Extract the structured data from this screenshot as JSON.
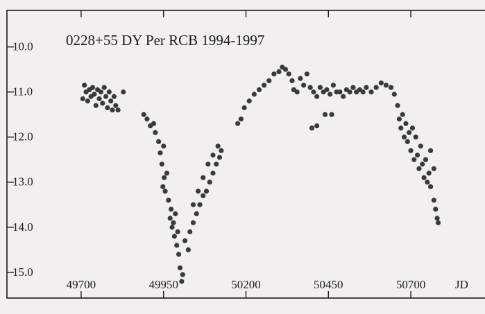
{
  "chart_data": {
    "type": "scatter",
    "title": "0228+55  DY Per  RCB  1994-1997",
    "xlabel": "JD",
    "color": "#3a3a3a",
    "y_inverted": true,
    "xlim": [
      49475,
      50925
    ],
    "ylim": [
      9.19,
      15.57
    ],
    "xticks": [
      49700,
      49950,
      50200,
      50450,
      50700
    ],
    "yticks": [
      {
        "value": 10,
        "label": "10.0"
      },
      {
        "value": 11,
        "label": "11.0"
      },
      {
        "value": 12,
        "label": "12.0"
      },
      {
        "value": 13,
        "label": "13.0"
      },
      {
        "value": 14,
        "label": "14.0"
      },
      {
        "value": 15,
        "label": "15.0"
      }
    ],
    "x": [
      49705,
      49710,
      49715,
      49720,
      49725,
      49730,
      49735,
      49740,
      49745,
      49750,
      49755,
      49760,
      49765,
      49770,
      49775,
      49780,
      49785,
      49790,
      49795,
      49800,
      49805,
      49812,
      49828,
      49890,
      49900,
      49910,
      49920,
      49925,
      49935,
      49940,
      49945,
      49950,
      49948,
      49952,
      49955,
      49960,
      49965,
      49970,
      49973,
      49976,
      49980,
      49983,
      49986,
      49990,
      49993,
      49996,
      50000,
      50005,
      50008,
      50015,
      50025,
      50030,
      50040,
      50050,
      50060,
      50070,
      50080,
      50090,
      50100,
      50110,
      50120,
      50125,
      50040,
      50055,
      50070,
      50085,
      50100,
      50115,
      50175,
      50185,
      50195,
      50210,
      50225,
      50240,
      50255,
      50270,
      50285,
      50300,
      50310,
      50320,
      50330,
      50340,
      50345,
      50355,
      50365,
      50375,
      50385,
      50395,
      50405,
      50415,
      50425,
      50435,
      50445,
      50455,
      50465,
      50475,
      50485,
      50495,
      50505,
      50515,
      50525,
      50535,
      50545,
      50555,
      50565,
      50580,
      50595,
      50610,
      50625,
      50640,
      50650,
      50400,
      50415,
      50440,
      50460,
      50660,
      50665,
      50670,
      50675,
      50680,
      50685,
      50690,
      50695,
      50700,
      50705,
      50710,
      50715,
      50720,
      50725,
      50730,
      50735,
      50740,
      50745,
      50750,
      50755,
      50760,
      50770,
      50775,
      50780,
      50783,
      50760,
      50770
    ],
    "values": [
      11.15,
      10.85,
      11.0,
      11.2,
      10.95,
      11.1,
      10.9,
      11.05,
      11.3,
      10.95,
      11.15,
      11.0,
      11.25,
      10.9,
      11.1,
      11.35,
      11.0,
      11.2,
      11.4,
      11.1,
      11.3,
      11.4,
      11.0,
      11.5,
      11.6,
      11.75,
      11.7,
      11.9,
      12.1,
      12.35,
      12.6,
      12.2,
      13.1,
      12.9,
      13.2,
      12.8,
      13.4,
      13.8,
      13.6,
      14.0,
      13.9,
      14.2,
      13.7,
      14.4,
      14.1,
      14.6,
      14.9,
      15.2,
      15.05,
      14.3,
      14.5,
      14.1,
      13.9,
      13.7,
      13.5,
      13.3,
      13.2,
      13.0,
      12.8,
      12.6,
      12.45,
      12.3,
      13.5,
      13.2,
      12.9,
      12.6,
      12.4,
      12.2,
      11.7,
      11.6,
      11.35,
      11.2,
      11.05,
      10.95,
      10.85,
      10.75,
      10.6,
      10.55,
      10.45,
      10.5,
      10.6,
      10.75,
      10.95,
      11.0,
      10.7,
      10.85,
      10.6,
      10.9,
      11.0,
      11.1,
      10.9,
      11.0,
      10.95,
      11.05,
      10.85,
      11.0,
      11.0,
      11.1,
      10.95,
      11.0,
      10.9,
      11.0,
      10.95,
      11.0,
      10.9,
      11.0,
      10.9,
      10.8,
      10.85,
      10.9,
      11.05,
      11.8,
      11.75,
      11.5,
      11.5,
      11.3,
      11.6,
      11.8,
      11.5,
      12.0,
      11.7,
      12.1,
      11.9,
      12.3,
      11.8,
      12.5,
      12.0,
      12.4,
      12.7,
      12.2,
      12.6,
      12.9,
      12.5,
      13.0,
      12.8,
      13.1,
      13.4,
      13.6,
      13.8,
      13.9,
      12.3,
      12.7
    ]
  }
}
